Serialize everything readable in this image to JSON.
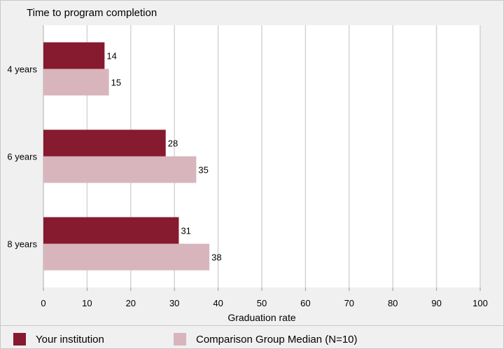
{
  "chart_data": {
    "type": "bar",
    "orientation": "horizontal",
    "title": "Time to program completion",
    "xlabel": "Graduation rate",
    "ylabel": "",
    "categories": [
      "4 years",
      "6 years",
      "8 years"
    ],
    "series": [
      {
        "name": "Your institution",
        "values": [
          14,
          28,
          31
        ],
        "color": "#861a2e"
      },
      {
        "name": "Comparison Group Median (N=10)",
        "values": [
          15,
          35,
          38
        ],
        "color": "#d8b5bc"
      }
    ],
    "xlim": [
      0,
      100
    ],
    "xticks": [
      0,
      10,
      20,
      30,
      40,
      50,
      60,
      70,
      80,
      90,
      100
    ],
    "grid": true,
    "legend_position": "bottom"
  }
}
